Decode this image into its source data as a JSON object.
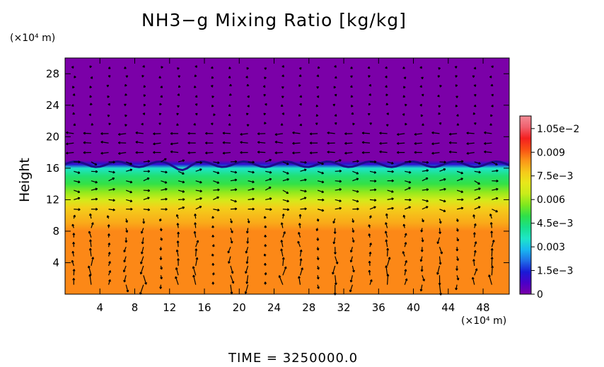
{
  "chart_data": {
    "type": "heatmap",
    "title": "NH3−g Mixing Ratio [kg/kg]",
    "ylabel": "Height",
    "y_unit_label": "(×10⁴ m)",
    "x_unit_label": "(×10⁴ m)",
    "footer": "TIME  =  3250000.0",
    "xlim": [
      0,
      51
    ],
    "ylim": [
      0,
      30
    ],
    "x_ticks": [
      "4",
      "8",
      "12",
      "16",
      "20",
      "24",
      "28",
      "32",
      "36",
      "40",
      "44",
      "48"
    ],
    "y_ticks": [
      "4",
      "8",
      "12",
      "16",
      "20",
      "24",
      "28"
    ],
    "colorbar": {
      "range": [
        0,
        0.0113
      ],
      "tick_values": [
        0,
        0.0015,
        0.003,
        0.0045,
        0.006,
        0.0075,
        0.009,
        0.0105
      ],
      "tick_labels": [
        "0",
        "1.5e−3",
        "0.003",
        "4.5e−3",
        "0.006",
        "7.5e−3",
        "0.009",
        "1.05e−2"
      ],
      "colors": [
        "#7b00a8",
        "#4b00c8",
        "#1a1ad6",
        "#1f6fe8",
        "#18b8f0",
        "#1ee6c8",
        "#18e08c",
        "#2ee04a",
        "#7ee81e",
        "#c8ec1a",
        "#e8e81a",
        "#f6c81a",
        "#fc9418",
        "#fa5014",
        "#f42020",
        "#f0606e",
        "#f28c96"
      ]
    },
    "field_profile": {
      "height": [
        0,
        4,
        8,
        9,
        11,
        12,
        13,
        14,
        15,
        16,
        16.5,
        17,
        20,
        30
      ],
      "mixing_ratio": [
        0.0086,
        0.0086,
        0.0086,
        0.0082,
        0.0076,
        0.0066,
        0.0058,
        0.005,
        0.0045,
        0.0035,
        0.0012,
        0.0,
        0.0,
        0.0
      ]
    },
    "cloud_top_height": 16.5,
    "wind_vectors_shown": true
  }
}
